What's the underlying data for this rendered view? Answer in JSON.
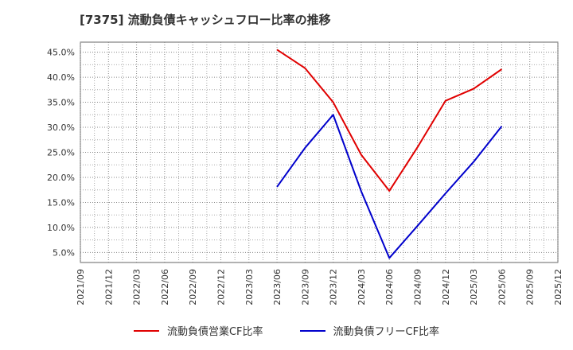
{
  "chart_data": {
    "type": "line",
    "title": "[7375]  流動負債キャッシュフロー比率の推移",
    "x": [
      "2021/09",
      "2021/12",
      "2022/03",
      "2022/06",
      "2022/09",
      "2022/12",
      "2023/03",
      "2023/06",
      "2023/09",
      "2023/12",
      "2024/03",
      "2024/06",
      "2024/09",
      "2024/12",
      "2025/03",
      "2025/06",
      "2025/09",
      "2025/12"
    ],
    "y_ticks": [
      "5.0%",
      "10.0%",
      "15.0%",
      "20.0%",
      "25.0%",
      "30.0%",
      "35.0%",
      "40.0%",
      "45.0%"
    ],
    "ylim": [
      3,
      47
    ],
    "series": [
      {
        "name": "流動負債営業CF比率",
        "color": "#e00000",
        "values": [
          null,
          null,
          null,
          null,
          null,
          null,
          null,
          45.5,
          41.8,
          35.0,
          24.5,
          17.3,
          26.0,
          35.3,
          37.7,
          41.6,
          null,
          null
        ]
      },
      {
        "name": "流動負債フリーCF比率",
        "color": "#0000cc",
        "values": [
          null,
          null,
          null,
          null,
          null,
          null,
          null,
          18.1,
          25.9,
          32.5,
          17.2,
          3.9,
          10.3,
          16.8,
          23.1,
          30.2,
          null,
          null
        ]
      }
    ],
    "legend_position": "bottom",
    "grid": true
  }
}
